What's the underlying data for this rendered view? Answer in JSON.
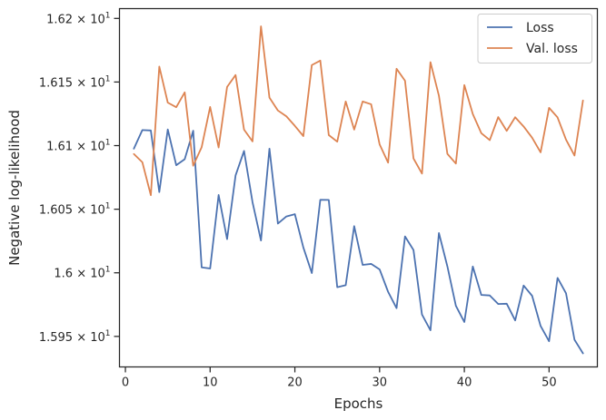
{
  "chart_data": {
    "type": "line",
    "xlabel": "Epochs",
    "ylabel": "Negative log-likelihood",
    "xlim": [
      -0.7,
      55.7
    ],
    "ylim": [
      15.926,
      16.2077
    ],
    "x_ticks": [
      0,
      10,
      20,
      30,
      40,
      50
    ],
    "y_ticks": [
      {
        "value": 15.95,
        "mantissa": "1.595",
        "base": "10",
        "exponent": "1"
      },
      {
        "value": 16.0,
        "mantissa": "1.6",
        "base": "10",
        "exponent": "1"
      },
      {
        "value": 16.05,
        "mantissa": "1.605",
        "base": "10",
        "exponent": "1"
      },
      {
        "value": 16.1,
        "mantissa": "1.61",
        "base": "10",
        "exponent": "1"
      },
      {
        "value": 16.15,
        "mantissa": "1.615",
        "base": "10",
        "exponent": "1"
      },
      {
        "value": 16.2,
        "mantissa": "1.62",
        "base": "10",
        "exponent": "1"
      }
    ],
    "grid": false,
    "legend_position": "top-right",
    "x": [
      1,
      2,
      3,
      4,
      5,
      6,
      7,
      8,
      9,
      10,
      11,
      12,
      13,
      14,
      15,
      16,
      17,
      18,
      19,
      20,
      21,
      22,
      23,
      24,
      25,
      26,
      27,
      28,
      29,
      30,
      31,
      32,
      33,
      34,
      35,
      36,
      37,
      38,
      39,
      40,
      41,
      42,
      43,
      44,
      45,
      46,
      47,
      48,
      49,
      50,
      51,
      52,
      53,
      54
    ],
    "series": [
      {
        "name": "Loss",
        "color": "#4c72b0",
        "values": [
          16.0976,
          16.1122,
          16.1119,
          16.0635,
          16.1127,
          16.0846,
          16.0893,
          16.1117,
          16.0043,
          16.0034,
          16.0612,
          16.0265,
          16.0765,
          16.0958,
          16.0556,
          16.0254,
          16.0976,
          16.0387,
          16.0443,
          16.0461,
          16.0199,
          15.9998,
          16.0574,
          16.0573,
          15.9887,
          15.9903,
          16.0367,
          16.0062,
          16.007,
          16.0027,
          15.9851,
          15.9722,
          16.0286,
          16.0179,
          15.9672,
          15.9548,
          16.0313,
          16.005,
          15.9741,
          15.9613,
          16.005,
          15.9826,
          15.9822,
          15.9755,
          15.9757,
          15.9626,
          15.99,
          15.9819,
          15.9582,
          15.9462,
          15.996,
          15.9839,
          15.9474,
          15.9367
        ]
      },
      {
        "name": "Val. loss",
        "color": "#dd8452",
        "values": [
          16.0934,
          16.0869,
          16.061,
          16.1621,
          16.1338,
          16.1302,
          16.1419,
          16.0842,
          16.0988,
          16.1304,
          16.0985,
          16.1461,
          16.1555,
          16.1126,
          16.1033,
          16.1938,
          16.1377,
          16.1276,
          16.123,
          16.1155,
          16.1075,
          16.1633,
          16.1668,
          16.1083,
          16.1031,
          16.1347,
          16.1126,
          16.1347,
          16.1325,
          16.101,
          16.0866,
          16.1604,
          16.151,
          16.0899,
          16.078,
          16.1656,
          16.1392,
          16.0935,
          16.0859,
          16.1476,
          16.1248,
          16.1098,
          16.1043,
          16.1224,
          16.1116,
          16.1223,
          16.115,
          16.1062,
          16.0947,
          16.1297,
          16.1222,
          16.1047,
          16.0922,
          16.1355
        ]
      }
    ]
  }
}
